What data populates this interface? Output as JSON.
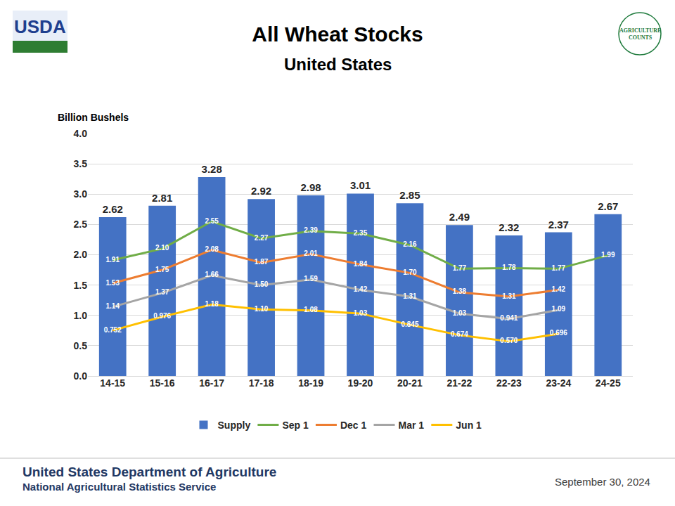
{
  "chart_data": {
    "type": "bar",
    "title": "All Wheat Stocks",
    "subtitle": "United States",
    "ylabel": "Billion Bushels",
    "categories": [
      "14-15",
      "15-16",
      "16-17",
      "17-18",
      "18-19",
      "19-20",
      "20-21",
      "21-22",
      "22-23",
      "23-24",
      "24-25"
    ],
    "series": [
      {
        "name": "Supply",
        "type": "bar",
        "color": "#4472c4",
        "values": [
          2.62,
          2.81,
          3.28,
          2.92,
          2.98,
          3.01,
          2.85,
          2.49,
          2.32,
          2.37,
          2.67
        ],
        "value_labels": [
          "2.62",
          "2.81",
          "3.28",
          "2.92",
          "2.98",
          "3.01",
          "2.85",
          "2.49",
          "2.32",
          "2.37",
          "2.67"
        ]
      },
      {
        "name": "Sep 1",
        "type": "line",
        "color": "#70ad47",
        "values": [
          1.91,
          2.1,
          2.55,
          2.27,
          2.39,
          2.35,
          2.16,
          1.77,
          1.78,
          1.77,
          1.99
        ],
        "value_labels": [
          "1.91",
          "2.10",
          "2.55",
          "2.27",
          "2.39",
          "2.35",
          "2.16",
          "1.77",
          "1.78",
          "1.77",
          "1.99"
        ]
      },
      {
        "name": "Dec 1",
        "type": "line",
        "color": "#ed7d31",
        "values": [
          1.53,
          1.75,
          2.08,
          1.87,
          2.01,
          1.84,
          1.7,
          1.38,
          1.31,
          1.42,
          null
        ],
        "value_labels": [
          "1.53",
          "1.75",
          "2.08",
          "1.87",
          "2.01",
          "1.84",
          "1.70",
          "1.38",
          "1.31",
          "1.42",
          null
        ]
      },
      {
        "name": "Mar 1",
        "type": "line",
        "color": "#a5a5a5",
        "values": [
          1.14,
          1.37,
          1.66,
          1.5,
          1.59,
          1.42,
          1.31,
          1.03,
          0.941,
          1.09,
          null
        ],
        "value_labels": [
          "1.14",
          "1.37",
          "1.66",
          "1.50",
          "1.59",
          "1.42",
          "1.31",
          "1.03",
          "0.941",
          "1.09",
          null
        ]
      },
      {
        "name": "Jun 1",
        "type": "line",
        "color": "#ffc000",
        "values": [
          0.752,
          0.976,
          1.18,
          1.1,
          1.08,
          1.03,
          0.845,
          0.674,
          0.57,
          0.696,
          null
        ],
        "value_labels": [
          "0.752",
          "0.976",
          "1.18",
          "1.10",
          "1.08",
          "1.03",
          "0.845",
          "0.674",
          "0.570",
          "0.696",
          null
        ]
      }
    ],
    "ylim": [
      0,
      4
    ],
    "yticks": [
      {
        "value": 0,
        "label": "0.0"
      },
      {
        "value": 0.5,
        "label": "0.5"
      },
      {
        "value": 1,
        "label": "1.0"
      },
      {
        "value": 1.5,
        "label": "1.5"
      },
      {
        "value": 2,
        "label": "2.0"
      },
      {
        "value": 2.5,
        "label": "2.5"
      },
      {
        "value": 3,
        "label": "3.0"
      },
      {
        "value": 3.5,
        "label": "3.5"
      },
      {
        "value": 4,
        "label": "4.0"
      }
    ],
    "grid": true,
    "legend": "bottom",
    "data_labels": true
  },
  "page": {
    "logo_left": "USDA",
    "logo_right": [
      "AGRICULTURE",
      "COUNTS"
    ],
    "footer": [
      "United States Department of Agriculture",
      "National Agricultural Statistics Service"
    ],
    "date": "September 30, 2024"
  }
}
